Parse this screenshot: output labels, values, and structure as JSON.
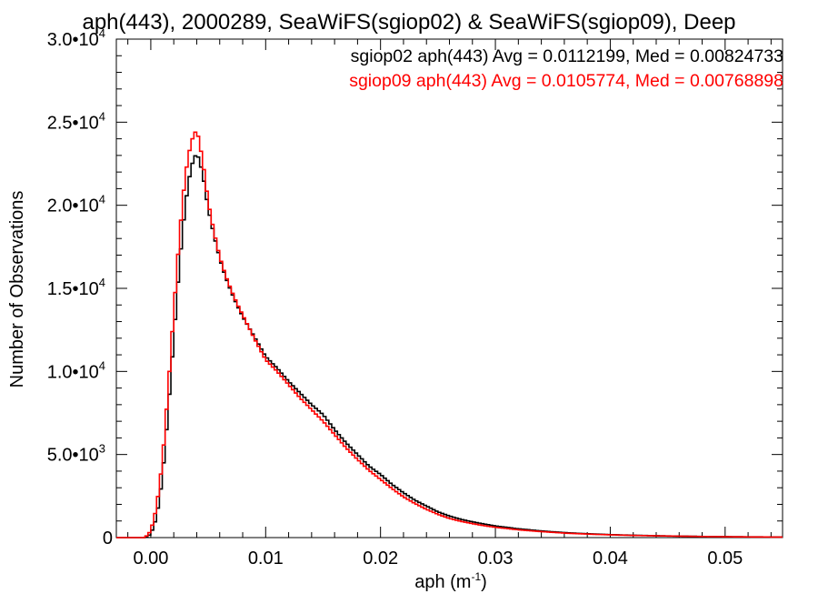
{
  "chart_data": {
    "type": "line",
    "title": "aph(443), 2000289, SeaWiFS(sgiop02) & SeaWiFS(sgiop09), Deep",
    "xlabel": "aph (m",
    "xlabel_sup": "-1",
    "xlabel_end": ")",
    "ylabel": "Number of Observations",
    "xlim": [
      -0.003,
      0.055
    ],
    "ylim": [
      0,
      30000
    ],
    "xticks": [
      {
        "value": 0.0,
        "label": "0.00"
      },
      {
        "value": 0.01,
        "label": "0.01"
      },
      {
        "value": 0.02,
        "label": "0.02"
      },
      {
        "value": 0.03,
        "label": "0.03"
      },
      {
        "value": 0.04,
        "label": "0.04"
      },
      {
        "value": 0.05,
        "label": "0.05"
      }
    ],
    "yticks": [
      {
        "value": 0,
        "mant": "0",
        "exp": ""
      },
      {
        "value": 5000,
        "mant": "5.0•10",
        "exp": "3"
      },
      {
        "value": 10000,
        "mant": "1.0•10",
        "exp": "4"
      },
      {
        "value": 15000,
        "mant": "1.5•10",
        "exp": "4"
      },
      {
        "value": 20000,
        "mant": "2.0•10",
        "exp": "4"
      },
      {
        "value": 25000,
        "mant": "2.5•10",
        "exp": "4"
      },
      {
        "value": 30000,
        "mant": "3.0•10",
        "exp": "4"
      }
    ],
    "legend_position": "top-right",
    "series": [
      {
        "name": "sgiop02 aph(443) Avg = 0.0112199, Med = 0.00824733",
        "color": "#000000",
        "points": [
          [
            -0.003,
            0
          ],
          [
            -0.0005,
            0
          ],
          [
            0.0,
            200
          ],
          [
            0.0005,
            1200
          ],
          [
            0.001,
            3500
          ],
          [
            0.0015,
            7500
          ],
          [
            0.002,
            12000
          ],
          [
            0.0025,
            16500
          ],
          [
            0.003,
            20000
          ],
          [
            0.0035,
            22300
          ],
          [
            0.004,
            23200
          ],
          [
            0.0045,
            22000
          ],
          [
            0.005,
            19800
          ],
          [
            0.0055,
            18200
          ],
          [
            0.006,
            16800
          ],
          [
            0.0065,
            15700
          ],
          [
            0.007,
            14800
          ],
          [
            0.0075,
            14000
          ],
          [
            0.008,
            13300
          ],
          [
            0.009,
            12100
          ],
          [
            0.01,
            10900
          ],
          [
            0.011,
            10200
          ],
          [
            0.012,
            9400
          ],
          [
            0.013,
            8700
          ],
          [
            0.014,
            8000
          ],
          [
            0.015,
            7400
          ],
          [
            0.016,
            6500
          ],
          [
            0.017,
            5700
          ],
          [
            0.018,
            5000
          ],
          [
            0.019,
            4300
          ],
          [
            0.02,
            3800
          ],
          [
            0.021,
            3200
          ],
          [
            0.022,
            2700
          ],
          [
            0.023,
            2250
          ],
          [
            0.024,
            1900
          ],
          [
            0.025,
            1550
          ],
          [
            0.026,
            1300
          ],
          [
            0.027,
            1100
          ],
          [
            0.028,
            950
          ],
          [
            0.029,
            820
          ],
          [
            0.03,
            700
          ],
          [
            0.032,
            530
          ],
          [
            0.034,
            400
          ],
          [
            0.036,
            300
          ],
          [
            0.038,
            230
          ],
          [
            0.04,
            180
          ],
          [
            0.042,
            140
          ],
          [
            0.045,
            100
          ],
          [
            0.048,
            70
          ],
          [
            0.051,
            50
          ],
          [
            0.055,
            35
          ]
        ]
      },
      {
        "name": "sgiop09 aph(443) Avg = 0.0105774, Med = 0.00768898",
        "color": "#ff0000",
        "points": [
          [
            -0.003,
            0
          ],
          [
            -0.0005,
            0
          ],
          [
            0.0,
            400
          ],
          [
            0.0005,
            1800
          ],
          [
            0.001,
            4500
          ],
          [
            0.0015,
            8800
          ],
          [
            0.002,
            13600
          ],
          [
            0.0025,
            18200
          ],
          [
            0.003,
            21800
          ],
          [
            0.0035,
            23800
          ],
          [
            0.004,
            24600
          ],
          [
            0.0045,
            22800
          ],
          [
            0.005,
            20200
          ],
          [
            0.0055,
            18400
          ],
          [
            0.006,
            16900
          ],
          [
            0.0065,
            15800
          ],
          [
            0.007,
            14900
          ],
          [
            0.0075,
            14100
          ],
          [
            0.008,
            13400
          ],
          [
            0.009,
            12000
          ],
          [
            0.01,
            10700
          ],
          [
            0.011,
            10000
          ],
          [
            0.012,
            9200
          ],
          [
            0.013,
            8400
          ],
          [
            0.014,
            7700
          ],
          [
            0.015,
            7000
          ],
          [
            0.016,
            6200
          ],
          [
            0.017,
            5400
          ],
          [
            0.018,
            4700
          ],
          [
            0.019,
            4050
          ],
          [
            0.02,
            3500
          ],
          [
            0.021,
            2950
          ],
          [
            0.022,
            2450
          ],
          [
            0.023,
            2050
          ],
          [
            0.024,
            1700
          ],
          [
            0.025,
            1400
          ],
          [
            0.026,
            1150
          ],
          [
            0.027,
            980
          ],
          [
            0.028,
            840
          ],
          [
            0.029,
            720
          ],
          [
            0.03,
            620
          ],
          [
            0.032,
            470
          ],
          [
            0.034,
            360
          ],
          [
            0.036,
            270
          ],
          [
            0.038,
            210
          ],
          [
            0.04,
            165
          ],
          [
            0.042,
            130
          ],
          [
            0.045,
            95
          ],
          [
            0.048,
            65
          ],
          [
            0.051,
            45
          ],
          [
            0.055,
            30
          ]
        ]
      }
    ]
  }
}
